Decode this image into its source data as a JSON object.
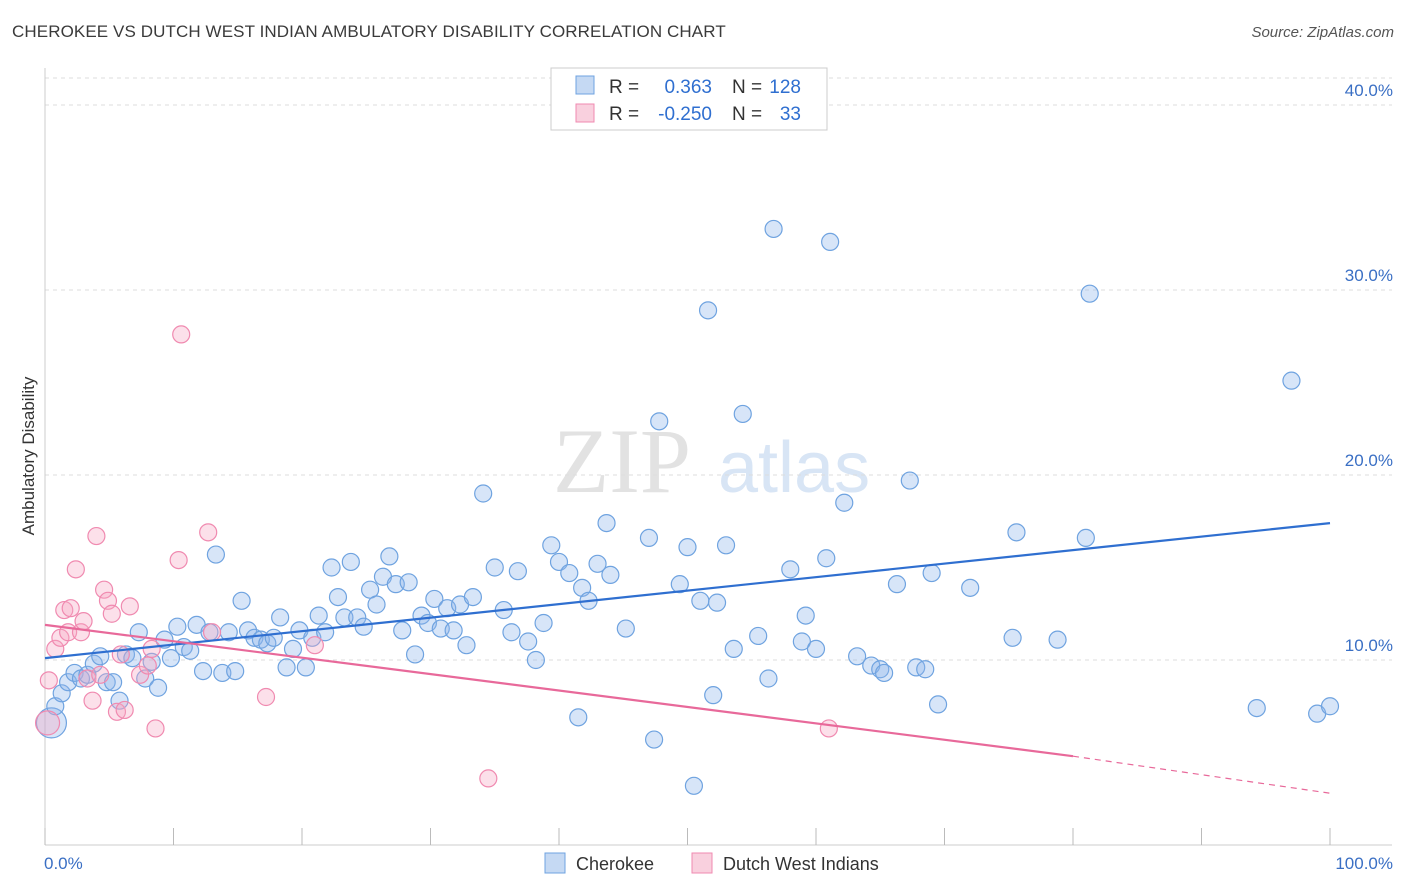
{
  "title": "CHEROKEE VS DUTCH WEST INDIAN AMBULATORY DISABILITY CORRELATION CHART",
  "source": "Source: ZipAtlas.com",
  "watermark": {
    "zip": "ZIP",
    "atlas": "atlas"
  },
  "legend": {
    "rows": [
      {
        "r_label": "R =",
        "r_value": "0.363",
        "n_label": "N =",
        "n_value": "128",
        "color": "#6fa3e0"
      },
      {
        "r_label": "R =",
        "r_value": "-0.250",
        "n_label": "N =",
        "n_value": "33",
        "color": "#f08ab0"
      }
    ]
  },
  "bottom_legend": [
    "Cherokee",
    "Dutch West Indians"
  ],
  "chart_data": {
    "type": "scatter",
    "title": "CHEROKEE VS DUTCH WEST INDIAN AMBULATORY DISABILITY CORRELATION CHART",
    "xlabel": "",
    "ylabel": "Ambulatory Disability",
    "xlim": [
      0,
      100
    ],
    "ylim": [
      0,
      42
    ],
    "x_tick_labels": [
      "0.0%",
      "100.0%"
    ],
    "y_ticks": [
      10,
      20,
      30,
      40
    ],
    "y_tick_labels": [
      "10.0%",
      "20.0%",
      "30.0%",
      "40.0%"
    ],
    "grid": "horizontal dashed",
    "legend_position": "top-center",
    "series": [
      {
        "name": "Cherokee",
        "color": "#6fa3e0",
        "trend": {
          "x0": 0,
          "y0": 10.1,
          "x1": 100,
          "y1": 17.4
        },
        "points": [
          [
            0.5,
            6.6
          ],
          [
            0.8,
            7.5
          ],
          [
            1.3,
            8.2
          ],
          [
            1.8,
            8.8
          ],
          [
            2.3,
            9.3
          ],
          [
            2.8,
            9.0
          ],
          [
            3.3,
            9.2
          ],
          [
            3.8,
            9.8
          ],
          [
            4.3,
            10.2
          ],
          [
            4.8,
            8.8
          ],
          [
            5.3,
            8.8
          ],
          [
            5.8,
            7.8
          ],
          [
            6.3,
            10.3
          ],
          [
            6.8,
            10.1
          ],
          [
            7.3,
            11.5
          ],
          [
            7.8,
            9.0
          ],
          [
            8.3,
            9.9
          ],
          [
            8.8,
            8.5
          ],
          [
            9.3,
            11.1
          ],
          [
            9.8,
            10.1
          ],
          [
            10.3,
            11.8
          ],
          [
            10.8,
            10.7
          ],
          [
            11.3,
            10.5
          ],
          [
            11.8,
            11.9
          ],
          [
            12.3,
            9.4
          ],
          [
            12.8,
            11.5
          ],
          [
            13.3,
            15.7
          ],
          [
            13.8,
            9.3
          ],
          [
            14.3,
            11.5
          ],
          [
            14.8,
            9.4
          ],
          [
            15.3,
            13.2
          ],
          [
            15.8,
            11.6
          ],
          [
            16.3,
            11.2
          ],
          [
            16.8,
            11.1
          ],
          [
            17.3,
            10.9
          ],
          [
            17.8,
            11.2
          ],
          [
            18.3,
            12.3
          ],
          [
            18.8,
            9.6
          ],
          [
            19.3,
            10.6
          ],
          [
            19.8,
            11.6
          ],
          [
            20.3,
            9.6
          ],
          [
            20.8,
            11.2
          ],
          [
            21.3,
            12.4
          ],
          [
            21.8,
            11.5
          ],
          [
            22.3,
            15.0
          ],
          [
            22.8,
            13.4
          ],
          [
            23.3,
            12.3
          ],
          [
            23.8,
            15.3
          ],
          [
            24.3,
            12.3
          ],
          [
            24.8,
            11.8
          ],
          [
            25.3,
            13.8
          ],
          [
            25.8,
            13.0
          ],
          [
            26.3,
            14.5
          ],
          [
            26.8,
            15.6
          ],
          [
            27.3,
            14.1
          ],
          [
            27.8,
            11.6
          ],
          [
            28.3,
            14.2
          ],
          [
            28.8,
            10.3
          ],
          [
            29.3,
            12.4
          ],
          [
            29.8,
            12.0
          ],
          [
            30.3,
            13.3
          ],
          [
            30.8,
            11.7
          ],
          [
            31.3,
            12.8
          ],
          [
            31.8,
            11.6
          ],
          [
            32.3,
            13.0
          ],
          [
            32.8,
            10.8
          ],
          [
            33.3,
            13.4
          ],
          [
            34.1,
            19.0
          ],
          [
            35.0,
            15.0
          ],
          [
            35.7,
            12.7
          ],
          [
            36.3,
            11.5
          ],
          [
            36.8,
            14.8
          ],
          [
            37.6,
            11.0
          ],
          [
            38.2,
            10.0
          ],
          [
            38.8,
            12.0
          ],
          [
            39.4,
            16.2
          ],
          [
            40.0,
            15.3
          ],
          [
            40.8,
            14.7
          ],
          [
            41.5,
            6.9
          ],
          [
            41.8,
            13.9
          ],
          [
            42.3,
            13.2
          ],
          [
            43.0,
            15.2
          ],
          [
            43.7,
            17.4
          ],
          [
            44.0,
            14.6
          ],
          [
            45.2,
            11.7
          ],
          [
            47.0,
            16.6
          ],
          [
            47.4,
            5.7
          ],
          [
            47.8,
            22.9
          ],
          [
            49.4,
            14.1
          ],
          [
            50.0,
            16.1
          ],
          [
            50.5,
            3.2
          ],
          [
            51.0,
            13.2
          ],
          [
            51.6,
            28.9
          ],
          [
            52.0,
            8.1
          ],
          [
            52.3,
            13.1
          ],
          [
            53.0,
            16.2
          ],
          [
            53.6,
            10.6
          ],
          [
            54.3,
            23.3
          ],
          [
            55.5,
            11.3
          ],
          [
            56.3,
            9.0
          ],
          [
            56.7,
            33.3
          ],
          [
            58.0,
            14.9
          ],
          [
            58.9,
            11.0
          ],
          [
            59.2,
            12.4
          ],
          [
            60.0,
            10.6
          ],
          [
            60.8,
            15.5
          ],
          [
            61.1,
            32.6
          ],
          [
            62.2,
            18.5
          ],
          [
            63.2,
            10.2
          ],
          [
            64.3,
            9.7
          ],
          [
            65.0,
            9.5
          ],
          [
            65.3,
            9.3
          ],
          [
            66.3,
            14.1
          ],
          [
            67.3,
            19.7
          ],
          [
            67.8,
            9.6
          ],
          [
            68.5,
            9.5
          ],
          [
            69.0,
            14.7
          ],
          [
            69.5,
            7.6
          ],
          [
            72.0,
            13.9
          ],
          [
            75.3,
            11.2
          ],
          [
            75.6,
            16.9
          ],
          [
            78.8,
            11.1
          ],
          [
            81.0,
            16.6
          ],
          [
            81.3,
            29.8
          ],
          [
            94.3,
            7.4
          ],
          [
            97.0,
            25.1
          ],
          [
            99.0,
            7.1
          ],
          [
            100.0,
            7.5
          ]
        ]
      },
      {
        "name": "Dutch West Indians",
        "color": "#f08ab0",
        "trend": {
          "x0": 0,
          "y0": 11.9,
          "x1": 80,
          "y1": 4.8,
          "dashed_to": {
            "x": 100,
            "y": 2.8
          }
        },
        "points": [
          [
            0.3,
            8.9
          ],
          [
            0.8,
            10.6
          ],
          [
            1.2,
            11.2
          ],
          [
            1.5,
            12.7
          ],
          [
            1.8,
            11.5
          ],
          [
            2.0,
            12.8
          ],
          [
            2.4,
            14.9
          ],
          [
            2.8,
            11.5
          ],
          [
            3.0,
            12.1
          ],
          [
            3.3,
            9.0
          ],
          [
            3.7,
            7.8
          ],
          [
            4.0,
            16.7
          ],
          [
            4.3,
            9.2
          ],
          [
            4.6,
            13.8
          ],
          [
            4.9,
            13.2
          ],
          [
            5.2,
            12.5
          ],
          [
            5.6,
            7.2
          ],
          [
            5.9,
            10.3
          ],
          [
            6.2,
            7.3
          ],
          [
            6.6,
            12.9
          ],
          [
            7.4,
            9.2
          ],
          [
            8.0,
            9.7
          ],
          [
            8.3,
            10.6
          ],
          [
            8.6,
            6.3
          ],
          [
            10.4,
            15.4
          ],
          [
            10.6,
            27.6
          ],
          [
            12.7,
            16.9
          ],
          [
            13.0,
            11.5
          ],
          [
            17.2,
            8.0
          ],
          [
            21.0,
            10.8
          ],
          [
            34.5,
            3.6
          ],
          [
            61.0,
            6.3
          ],
          [
            0.2,
            6.6
          ]
        ]
      }
    ]
  }
}
